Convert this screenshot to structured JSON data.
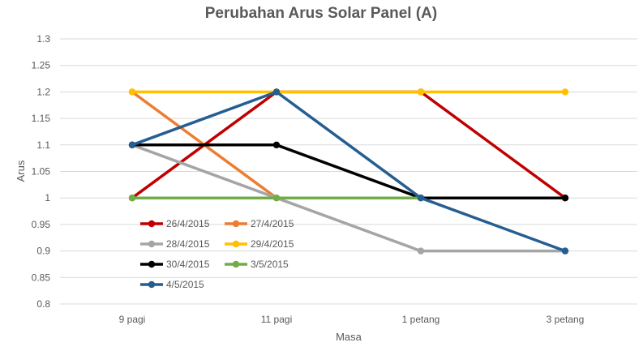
{
  "chart_data": {
    "type": "line",
    "title": "Perubahan Arus Solar Panel (A)",
    "xlabel": "Masa",
    "ylabel": "Arus",
    "categories": [
      "9 pagi",
      "11 pagi",
      "1 petang",
      "3 petang"
    ],
    "ylim": [
      0.8,
      1.3
    ],
    "yticks": [
      "0.8",
      "0.85",
      "0.9",
      "0.95",
      "1",
      "1.05",
      "1.1",
      "1.15",
      "1.2",
      "1.25",
      "1.3"
    ],
    "grid": true,
    "legend_position": "bottom-left",
    "series": [
      {
        "name": "26/4/2015",
        "color": "#C00000",
        "values": [
          1.0,
          1.2,
          1.2,
          1.0
        ]
      },
      {
        "name": "27/4/2015",
        "color": "#ED7D31",
        "values": [
          1.2,
          1.0,
          null,
          null
        ]
      },
      {
        "name": "28/4/2015",
        "color": "#A5A5A5",
        "values": [
          1.1,
          1.0,
          0.9,
          0.9
        ]
      },
      {
        "name": "29/4/2015",
        "color": "#FFC000",
        "values": [
          1.2,
          1.2,
          1.2,
          1.2
        ]
      },
      {
        "name": "30/4/2015",
        "color": "#000000",
        "values": [
          1.1,
          1.1,
          1.0,
          1.0
        ]
      },
      {
        "name": "3/5/2015",
        "color": "#70AD47",
        "values": [
          1.0,
          1.0,
          1.0,
          null
        ]
      },
      {
        "name": "4/5/2015",
        "color": "#255E91",
        "values": [
          1.1,
          1.2,
          1.0,
          0.9
        ]
      }
    ]
  }
}
